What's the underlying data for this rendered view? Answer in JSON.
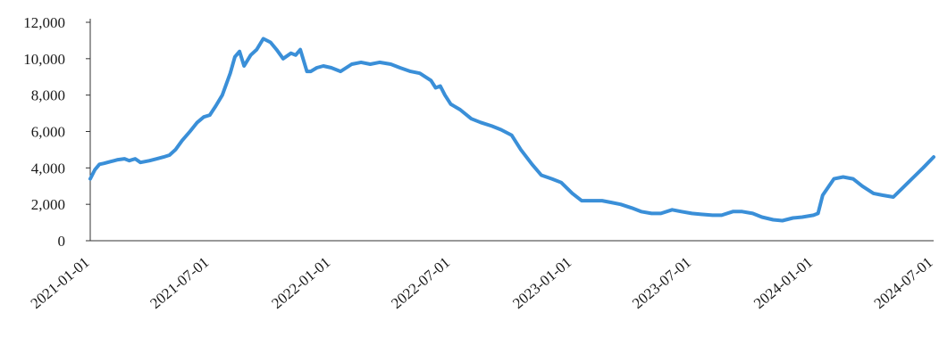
{
  "chart_data": {
    "type": "line",
    "title": "",
    "xlabel": "",
    "ylabel": "",
    "ylim": [
      0,
      12000
    ],
    "xlim": [
      "2021-01-01",
      "2024-07-01"
    ],
    "grid": false,
    "legend": "none",
    "y_ticks": [
      0,
      2000,
      4000,
      6000,
      8000,
      10000,
      12000
    ],
    "y_tick_labels": [
      "0",
      "2,000",
      "4,000",
      "6,000",
      "8,000",
      "10,000",
      "12,000"
    ],
    "x_tick_labels": [
      "2021-01-01",
      "2021-07-01",
      "2022-01-01",
      "2022-07-01",
      "2023-01-01",
      "2023-07-01",
      "2024-01-01",
      "2024-07-01"
    ],
    "line_color": "#3a8fd8",
    "series": [
      {
        "x": [
          "2021-01-01",
          "2021-01-08",
          "2021-01-15",
          "2021-01-22",
          "2021-02-01",
          "2021-02-12",
          "2021-02-22",
          "2021-03-01",
          "2021-03-10",
          "2021-03-18",
          "2021-03-25",
          "2021-04-01",
          "2021-04-12",
          "2021-04-22",
          "2021-05-01",
          "2021-05-10",
          "2021-05-20",
          "2021-06-01",
          "2021-06-12",
          "2021-06-22",
          "2021-07-01",
          "2021-07-10",
          "2021-07-20",
          "2021-08-01",
          "2021-08-08",
          "2021-08-15",
          "2021-08-22",
          "2021-09-01",
          "2021-09-10",
          "2021-09-20",
          "2021-10-01",
          "2021-10-10",
          "2021-10-20",
          "2021-11-01",
          "2021-11-08",
          "2021-11-15",
          "2021-11-25",
          "2021-12-01",
          "2021-12-10",
          "2021-12-20",
          "2022-01-01",
          "2022-01-15",
          "2022-02-01",
          "2022-02-15",
          "2022-03-01",
          "2022-03-15",
          "2022-04-01",
          "2022-04-15",
          "2022-05-01",
          "2022-05-15",
          "2022-06-01",
          "2022-06-08",
          "2022-06-15",
          "2022-06-22",
          "2022-07-01",
          "2022-07-15",
          "2022-08-01",
          "2022-08-15",
          "2022-09-01",
          "2022-09-15",
          "2022-10-01",
          "2022-10-15",
          "2022-11-01",
          "2022-11-15",
          "2022-12-01",
          "2022-12-15",
          "2023-01-01",
          "2023-01-15",
          "2023-02-01",
          "2023-02-15",
          "2023-03-01",
          "2023-03-15",
          "2023-04-01",
          "2023-04-15",
          "2023-05-01",
          "2023-05-15",
          "2023-06-01",
          "2023-06-15",
          "2023-07-01",
          "2023-07-15",
          "2023-08-01",
          "2023-08-15",
          "2023-09-01",
          "2023-09-15",
          "2023-10-01",
          "2023-10-15",
          "2023-11-01",
          "2023-11-15",
          "2023-12-01",
          "2023-12-15",
          "2024-01-01",
          "2024-01-08",
          "2024-01-15",
          "2024-02-01",
          "2024-02-15",
          "2024-03-01",
          "2024-03-15",
          "2024-04-01",
          "2024-04-15",
          "2024-05-01",
          "2024-05-15",
          "2024-06-01",
          "2024-06-15",
          "2024-07-01"
        ],
        "y": [
          3400,
          3900,
          4200,
          4250,
          4350,
          4450,
          4500,
          4400,
          4500,
          4300,
          4350,
          4400,
          4500,
          4600,
          4700,
          5000,
          5500,
          6000,
          6500,
          6800,
          6900,
          7400,
          8000,
          9200,
          10100,
          10400,
          9600,
          10200,
          10500,
          11100,
          10900,
          10500,
          10000,
          10300,
          10200,
          10500,
          9300,
          9300,
          9500,
          9600,
          9500,
          9300,
          9700,
          9800,
          9700,
          9800,
          9700,
          9500,
          9300,
          9200,
          8800,
          8400,
          8500,
          8000,
          7500,
          7200,
          6700,
          6500,
          6300,
          6100,
          5800,
          5000,
          4200,
          3600,
          3400,
          3200,
          2600,
          2200,
          2200,
          2200,
          2100,
          2000,
          1800,
          1600,
          1500,
          1500,
          1700,
          1600,
          1500,
          1450,
          1400,
          1400,
          1600,
          1600,
          1500,
          1300,
          1150,
          1100,
          1250,
          1300,
          1400,
          1500,
          2500,
          3400,
          3500,
          3400,
          3000,
          2600,
          2500,
          2400,
          2900,
          3500,
          4000,
          4600
        ]
      }
    ]
  }
}
